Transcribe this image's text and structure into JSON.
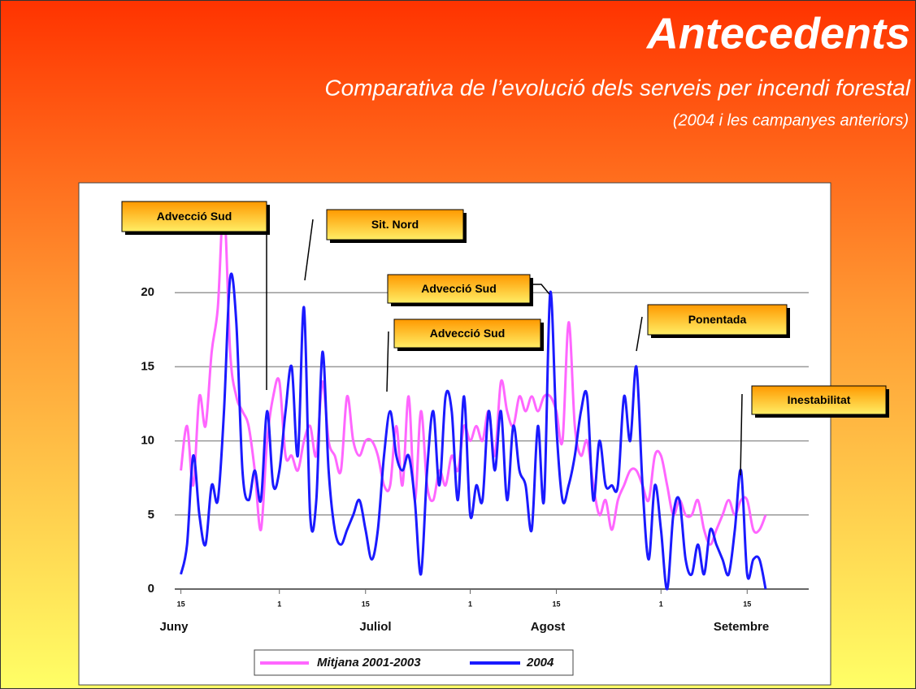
{
  "header": {
    "title": "Antecedents",
    "subtitle": "Comparativa de l’evolució dels serveis per incendi forestal",
    "note": "(2004 i les campanyes anteriors)"
  },
  "chart_data": {
    "type": "line",
    "x": [
      0,
      1,
      2,
      3,
      4,
      5,
      6,
      7,
      8,
      9,
      10,
      11,
      12,
      13,
      14,
      15,
      16,
      17,
      18,
      19,
      20,
      21,
      22,
      23,
      24,
      25,
      26,
      27,
      28,
      29,
      30,
      31,
      32,
      33,
      34,
      35,
      36,
      37,
      38,
      39,
      40,
      41,
      42,
      43,
      44,
      45,
      46,
      47,
      48,
      49,
      50,
      51,
      52,
      53,
      54,
      55,
      56,
      57,
      58,
      59,
      60,
      61,
      62,
      63,
      64,
      65,
      66,
      67,
      68,
      69,
      70,
      71,
      72,
      73,
      74,
      75,
      76,
      77,
      78,
      79,
      80,
      81,
      82,
      83,
      84,
      85,
      86,
      87,
      88,
      89,
      90,
      91,
      92,
      93,
      94,
      95
    ],
    "xlim": [
      -1,
      102
    ],
    "xticks": [
      {
        "value": 0,
        "label": "15"
      },
      {
        "value": 16,
        "label": "1"
      },
      {
        "value": 30,
        "label": "15"
      },
      {
        "value": 47,
        "label": "1"
      },
      {
        "value": 61,
        "label": "15"
      },
      {
        "value": 78,
        "label": "1"
      },
      {
        "value": 92,
        "label": "15"
      }
    ],
    "x_group_labels": [
      "Juny",
      "Juliol",
      "Agost",
      "Setembre"
    ],
    "ylim": [
      0,
      25
    ],
    "yticks": [
      0,
      5,
      10,
      15,
      20
    ],
    "grid": true,
    "series": [
      {
        "name": "Mitjana 2001-2003",
        "color": "#ff66ff",
        "values": [
          8,
          11,
          7,
          13,
          11,
          16,
          19,
          26,
          16,
          13,
          12,
          11,
          8,
          4,
          10,
          13,
          14,
          9,
          9,
          8,
          10,
          11,
          9,
          14,
          10,
          9,
          8,
          13,
          10,
          9,
          10,
          10,
          9,
          7,
          7,
          11,
          7,
          13,
          6,
          12,
          7,
          6,
          8,
          7,
          9,
          8,
          11,
          10,
          11,
          10,
          12,
          9,
          14,
          12,
          11,
          13,
          12,
          13,
          12,
          13,
          13,
          12,
          10,
          18,
          11,
          9,
          10,
          7,
          5,
          6,
          4,
          6,
          7,
          8,
          8,
          7,
          6,
          9,
          9,
          7,
          5,
          6,
          5,
          5,
          6,
          4,
          3,
          4,
          5,
          6,
          5,
          6,
          6,
          4,
          4,
          5
        ]
      },
      {
        "name": "2004",
        "color": "#1a1aff",
        "values": [
          1,
          3,
          9,
          5,
          3,
          7,
          6,
          12,
          21,
          18,
          8,
          6,
          8,
          6,
          12,
          7,
          8,
          12,
          15,
          9,
          19,
          5,
          6,
          16,
          8,
          4,
          3,
          4,
          5,
          6,
          4,
          2,
          4,
          9,
          12,
          9,
          8,
          9,
          6,
          1,
          8,
          12,
          7,
          13,
          12,
          6,
          13,
          5,
          7,
          6,
          12,
          8,
          12,
          6,
          11,
          8,
          7,
          4,
          11,
          6,
          20,
          11,
          6,
          7,
          9,
          12,
          13,
          6,
          10,
          7,
          7,
          7,
          13,
          10,
          15,
          7,
          2,
          7,
          4,
          0,
          5,
          6,
          2,
          1,
          3,
          1,
          4,
          3,
          2,
          1,
          4,
          8,
          1,
          2,
          2,
          0
        ]
      }
    ],
    "annotations": [
      "Advecció Sud",
      "Sit. Nord",
      "Advecció Sud",
      "Advecció Sud",
      "Ponentada",
      "Inestabilitat"
    ],
    "legend": "bottom"
  }
}
